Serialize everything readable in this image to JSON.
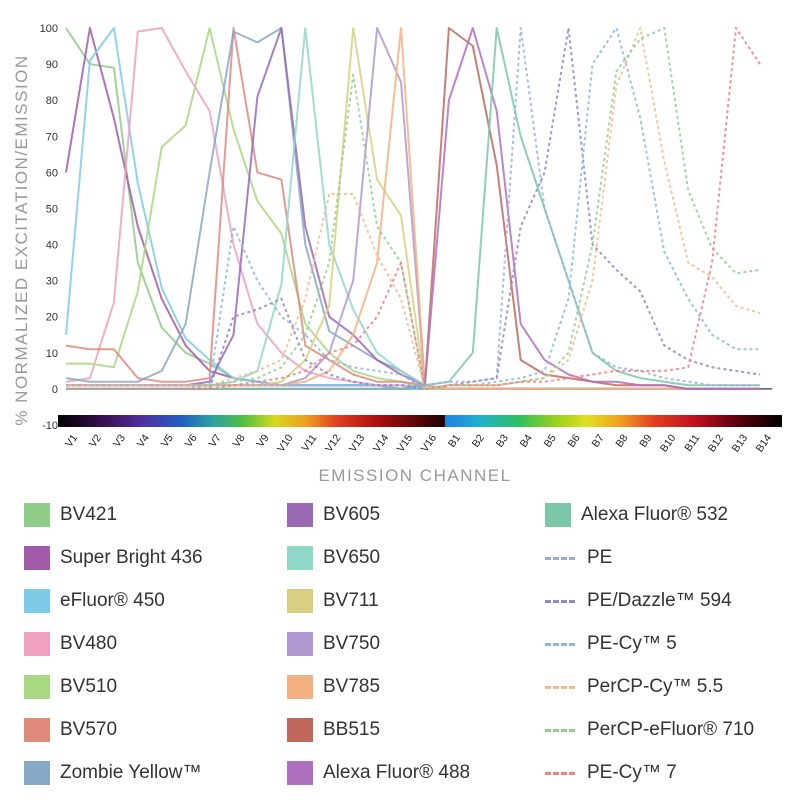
{
  "chart_data": {
    "type": "line",
    "ylabel": "% NORMALIZED EXCITATION/EMISSION",
    "xlabel": "EMISSION CHANNEL",
    "ylim": [
      -10,
      100
    ],
    "yticks": [
      -10,
      0,
      10,
      20,
      30,
      40,
      50,
      60,
      70,
      80,
      90,
      100
    ],
    "grid": false,
    "legend_position": "bottom",
    "categories": [
      "V1",
      "V2",
      "V3",
      "V4",
      "V5",
      "V6",
      "V7",
      "V8",
      "V9",
      "V10",
      "V11",
      "V12",
      "V13",
      "V14",
      "V15",
      "V16",
      "B1",
      "B2",
      "B3",
      "B4",
      "B5",
      "B6",
      "B7",
      "B8",
      "B9",
      "B10",
      "B11",
      "B12",
      "B13",
      "B14"
    ],
    "series": [
      {
        "name": "BV421",
        "color": "#8fcc8a",
        "style": "solid",
        "values": [
          100,
          90,
          89,
          35,
          17,
          10,
          7,
          3,
          2,
          1,
          1,
          1,
          1,
          1,
          0,
          0,
          0,
          0,
          0,
          0,
          0,
          0,
          0,
          0,
          0,
          0,
          0,
          0,
          0,
          0
        ]
      },
      {
        "name": "Super Bright 436",
        "color": "#a25ba8",
        "style": "solid",
        "values": [
          60,
          100,
          75,
          45,
          25,
          12,
          5,
          3,
          2,
          1,
          1,
          1,
          1,
          1,
          0,
          0,
          0,
          0,
          0,
          0,
          0,
          0,
          0,
          0,
          0,
          0,
          0,
          0,
          0,
          0
        ]
      },
      {
        "name": "eFluor® 450",
        "color": "#7ecbe8",
        "style": "solid",
        "values": [
          15,
          91,
          100,
          57,
          28,
          14,
          8,
          3,
          2,
          1,
          1,
          1,
          1,
          1,
          0,
          0,
          0,
          0,
          0,
          0,
          0,
          0,
          0,
          0,
          0,
          0,
          0,
          0,
          0,
          0
        ]
      },
      {
        "name": "BV480",
        "color": "#f0a0c0",
        "style": "solid",
        "values": [
          2,
          3,
          24,
          99,
          100,
          88,
          77,
          40,
          18,
          10,
          5,
          3,
          2,
          1,
          1,
          0,
          0,
          0,
          0,
          0,
          0,
          0,
          0,
          0,
          0,
          0,
          0,
          0,
          0,
          0
        ]
      },
      {
        "name": "BV510",
        "color": "#a8d882",
        "style": "solid",
        "values": [
          7,
          7,
          6,
          27,
          67,
          73,
          100,
          72,
          52,
          43,
          18,
          10,
          5,
          3,
          2,
          0,
          0,
          0,
          0,
          0,
          0,
          0,
          0,
          0,
          0,
          0,
          0,
          0,
          0,
          0
        ]
      },
      {
        "name": "BV570",
        "color": "#e08a7c",
        "style": "solid",
        "values": [
          12,
          11,
          11,
          3,
          2,
          2,
          3,
          100,
          60,
          58,
          12,
          8,
          4,
          2,
          2,
          1,
          0,
          0,
          0,
          0,
          0,
          0,
          0,
          0,
          0,
          0,
          0,
          0,
          0,
          0
        ]
      },
      {
        "name": "Zombie Yellow™",
        "color": "#88a8c8",
        "style": "solid",
        "values": [
          3,
          2,
          2,
          2,
          5,
          18,
          60,
          99,
          96,
          100,
          40,
          16,
          12,
          8,
          5,
          1,
          0,
          0,
          0,
          0,
          0,
          0,
          0,
          0,
          0,
          0,
          0,
          0,
          0,
          0
        ]
      },
      {
        "name": "BV605",
        "color": "#9a6ab5",
        "style": "solid",
        "values": [
          1,
          1,
          1,
          1,
          1,
          1,
          2,
          15,
          81,
          100,
          45,
          20,
          15,
          8,
          4,
          1,
          0,
          0,
          0,
          0,
          0,
          0,
          0,
          0,
          0,
          0,
          0,
          0,
          0,
          0
        ]
      },
      {
        "name": "BV650",
        "color": "#8fd8c8",
        "style": "solid",
        "values": [
          1,
          1,
          1,
          1,
          1,
          1,
          1,
          2,
          5,
          29,
          100,
          40,
          22,
          10,
          5,
          1,
          0,
          0,
          0,
          0,
          0,
          0,
          0,
          0,
          0,
          0,
          0,
          0,
          0,
          0
        ]
      },
      {
        "name": "BV711",
        "color": "#d8d080",
        "style": "solid",
        "values": [
          1,
          1,
          1,
          1,
          1,
          1,
          1,
          1,
          1,
          2,
          8,
          23,
          100,
          58,
          48,
          1,
          0,
          0,
          0,
          0,
          0,
          0,
          0,
          0,
          0,
          0,
          0,
          0,
          0,
          0
        ]
      },
      {
        "name": "BV750",
        "color": "#b098d0",
        "style": "solid",
        "values": [
          1,
          1,
          1,
          1,
          1,
          1,
          1,
          1,
          1,
          1,
          3,
          10,
          30,
          100,
          85,
          1,
          0,
          0,
          0,
          0,
          0,
          0,
          0,
          0,
          0,
          0,
          0,
          0,
          0,
          0
        ]
      },
      {
        "name": "BV785",
        "color": "#f4b080",
        "style": "solid",
        "values": [
          1,
          1,
          1,
          1,
          1,
          1,
          1,
          1,
          1,
          1,
          2,
          5,
          15,
          35,
          100,
          1,
          0,
          0,
          0,
          0,
          0,
          0,
          0,
          0,
          0,
          0,
          0,
          0,
          0,
          0
        ]
      },
      {
        "name": "BB515",
        "color": "#c0685c",
        "style": "solid",
        "values": [
          0,
          0,
          0,
          0,
          0,
          0,
          0,
          0,
          0,
          0,
          0,
          0,
          0,
          0,
          0,
          1,
          100,
          95,
          62,
          8,
          4,
          3,
          2,
          1,
          1,
          1,
          0,
          0,
          0,
          0
        ]
      },
      {
        "name": "Alexa Fluor® 488",
        "color": "#b070c0",
        "style": "solid",
        "values": [
          0,
          0,
          0,
          0,
          0,
          0,
          0,
          0,
          0,
          0,
          0,
          0,
          0,
          0,
          0,
          1,
          80,
          100,
          77,
          18,
          8,
          4,
          2,
          2,
          1,
          1,
          0,
          0,
          0,
          0
        ]
      },
      {
        "name": "Alexa Fluor® 532",
        "color": "#7ac8a8",
        "style": "solid",
        "values": [
          0,
          0,
          0,
          0,
          0,
          0,
          0,
          0,
          0,
          0,
          0,
          0,
          0,
          0,
          0,
          1,
          2,
          10,
          100,
          70,
          50,
          30,
          10,
          5,
          3,
          2,
          1,
          1,
          1,
          1
        ]
      },
      {
        "name": "PE",
        "color": "#98b0e0",
        "style": "dashed",
        "values": [
          1,
          1,
          1,
          1,
          1,
          1,
          1,
          1,
          1,
          1,
          1,
          1,
          1,
          1,
          1,
          1,
          2,
          2,
          3,
          100,
          50,
          30,
          10,
          6,
          5,
          3,
          2,
          1,
          1,
          1
        ]
      },
      {
        "name": "PE/Dazzle™ 594",
        "color": "#8888d0",
        "style": "dashed",
        "values": [
          0,
          0,
          0,
          0,
          0,
          0,
          0,
          20,
          22,
          25,
          8,
          4,
          2,
          1,
          1,
          0,
          1,
          2,
          3,
          45,
          60,
          100,
          40,
          33,
          27,
          12,
          8,
          6,
          5,
          4
        ]
      },
      {
        "name": "PE-Cy™ 5",
        "color": "#88b8e0",
        "style": "dashed",
        "values": [
          0,
          0,
          0,
          0,
          0,
          0,
          1,
          45,
          30,
          20,
          15,
          8,
          6,
          5,
          4,
          0,
          1,
          1,
          2,
          3,
          5,
          25,
          90,
          100,
          75,
          38,
          25,
          15,
          11,
          11
        ]
      },
      {
        "name": "PerCP-Cy™ 5.5",
        "color": "#f8b888",
        "style": "dashed",
        "values": [
          0,
          0,
          0,
          0,
          0,
          0,
          1,
          3,
          5,
          8,
          25,
          54,
          54,
          37,
          25,
          0,
          1,
          1,
          1,
          2,
          3,
          8,
          30,
          84,
          100,
          63,
          35,
          31,
          23,
          21
        ]
      },
      {
        "name": "PerCP-eFluor® 710",
        "color": "#90d090",
        "style": "dashed",
        "values": [
          0,
          0,
          0,
          0,
          0,
          0,
          1,
          2,
          3,
          6,
          15,
          35,
          87,
          45,
          35,
          0,
          1,
          1,
          1,
          2,
          3,
          10,
          40,
          88,
          97,
          100,
          55,
          39,
          32,
          33
        ]
      },
      {
        "name": "PE-Cy™ 7",
        "color": "#f08080",
        "style": "dashed",
        "values": [
          0,
          0,
          0,
          0,
          0,
          0,
          0,
          1,
          2,
          3,
          5,
          10,
          12,
          20,
          35,
          0,
          1,
          1,
          1,
          2,
          2,
          3,
          4,
          5,
          5,
          5,
          6,
          35,
          100,
          90
        ]
      }
    ]
  }
}
